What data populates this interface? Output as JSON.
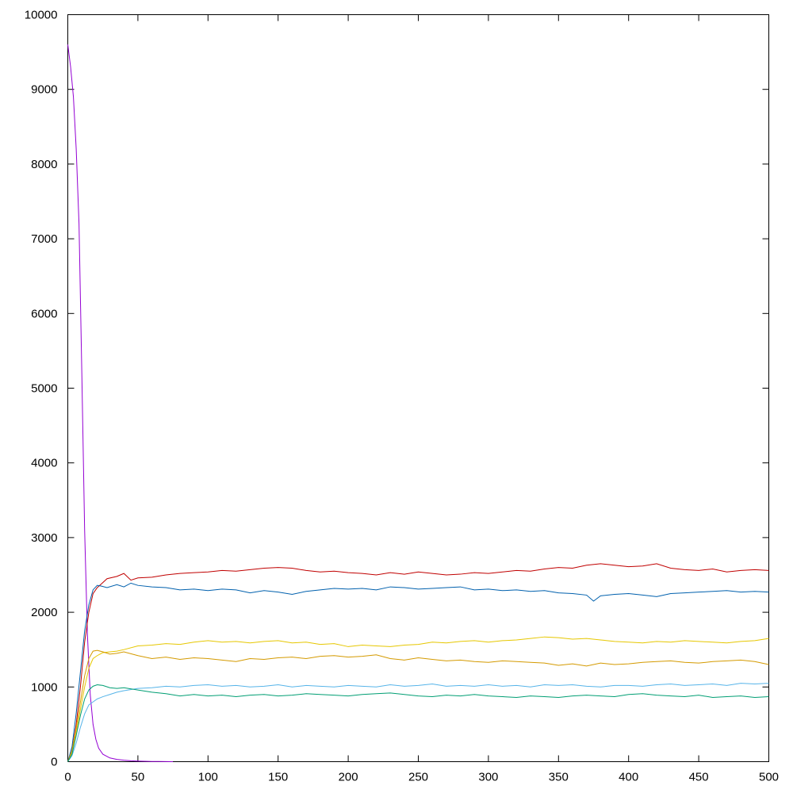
{
  "chart_data": {
    "type": "line",
    "title": "",
    "xlabel": "",
    "ylabel": "",
    "xlim": [
      0,
      500
    ],
    "ylim": [
      0,
      10000
    ],
    "grid": false,
    "x_ticks": [
      "0",
      "50",
      "100",
      "150",
      "200",
      "250",
      "300",
      "350",
      "400",
      "450",
      "500"
    ],
    "y_ticks": [
      "0",
      "1000",
      "2000",
      "3000",
      "4000",
      "5000",
      "6000",
      "7000",
      "8000",
      "9000",
      "10000"
    ],
    "series": [
      {
        "color": "#9400d3",
        "x": [
          0,
          2,
          4,
          6,
          8,
          10,
          12,
          14,
          16,
          18,
          20,
          22,
          25,
          30,
          35,
          40,
          45,
          50,
          55,
          60,
          65,
          70,
          75
        ],
        "values": [
          9600,
          9300,
          8900,
          8200,
          7200,
          5200,
          3100,
          1700,
          900,
          500,
          300,
          180,
          100,
          50,
          30,
          20,
          12,
          8,
          5,
          3,
          2,
          1,
          0
        ]
      },
      {
        "color": "#c00000",
        "x": [
          0,
          3,
          6,
          9,
          12,
          15,
          18,
          21,
          24,
          28,
          35,
          40,
          45,
          50,
          60,
          70,
          80,
          90,
          100,
          110,
          120,
          130,
          140,
          150,
          160,
          170,
          180,
          190,
          200,
          210,
          220,
          230,
          240,
          250,
          260,
          270,
          280,
          290,
          300,
          310,
          320,
          330,
          340,
          350,
          360,
          370,
          380,
          390,
          400,
          410,
          420,
          430,
          440,
          450,
          460,
          470,
          480,
          490,
          500
        ],
        "values": [
          0,
          150,
          500,
          1000,
          1600,
          2000,
          2250,
          2330,
          2380,
          2450,
          2480,
          2520,
          2430,
          2460,
          2470,
          2500,
          2520,
          2530,
          2540,
          2560,
          2550,
          2570,
          2590,
          2600,
          2590,
          2560,
          2540,
          2550,
          2530,
          2520,
          2500,
          2530,
          2510,
          2540,
          2520,
          2500,
          2510,
          2530,
          2520,
          2540,
          2560,
          2550,
          2580,
          2600,
          2590,
          2630,
          2650,
          2630,
          2610,
          2620,
          2650,
          2590,
          2570,
          2560,
          2580,
          2540,
          2560,
          2570,
          2560
        ]
      },
      {
        "color": "#0060ad",
        "x": [
          0,
          3,
          6,
          9,
          12,
          15,
          18,
          21,
          24,
          28,
          35,
          40,
          45,
          50,
          60,
          70,
          80,
          90,
          100,
          110,
          120,
          130,
          140,
          150,
          160,
          170,
          180,
          190,
          200,
          210,
          220,
          230,
          240,
          250,
          260,
          270,
          280,
          290,
          300,
          310,
          320,
          330,
          340,
          350,
          360,
          370,
          375,
          380,
          390,
          400,
          410,
          420,
          430,
          440,
          450,
          460,
          470,
          480,
          490,
          500
        ],
        "values": [
          0,
          200,
          650,
          1200,
          1750,
          2100,
          2300,
          2360,
          2350,
          2330,
          2370,
          2340,
          2390,
          2360,
          2340,
          2330,
          2300,
          2310,
          2290,
          2310,
          2300,
          2260,
          2290,
          2270,
          2240,
          2280,
          2300,
          2320,
          2310,
          2320,
          2300,
          2340,
          2330,
          2310,
          2320,
          2330,
          2340,
          2300,
          2310,
          2290,
          2300,
          2280,
          2290,
          2260,
          2250,
          2230,
          2150,
          2220,
          2240,
          2250,
          2230,
          2210,
          2250,
          2260,
          2270,
          2280,
          2290,
          2270,
          2280,
          2270
        ]
      },
      {
        "color": "#e6c700",
        "x": [
          0,
          3,
          6,
          9,
          12,
          15,
          18,
          21,
          25,
          30,
          35,
          40,
          50,
          60,
          70,
          80,
          90,
          100,
          110,
          120,
          130,
          140,
          150,
          160,
          170,
          180,
          190,
          200,
          210,
          220,
          230,
          240,
          250,
          260,
          270,
          280,
          290,
          300,
          310,
          320,
          330,
          340,
          350,
          360,
          370,
          380,
          390,
          400,
          410,
          420,
          430,
          440,
          450,
          460,
          470,
          480,
          490,
          500
        ],
        "values": [
          0,
          120,
          380,
          700,
          1000,
          1250,
          1380,
          1420,
          1460,
          1470,
          1480,
          1500,
          1550,
          1560,
          1580,
          1570,
          1600,
          1620,
          1600,
          1610,
          1590,
          1610,
          1620,
          1590,
          1600,
          1570,
          1580,
          1540,
          1560,
          1550,
          1540,
          1560,
          1570,
          1600,
          1590,
          1610,
          1620,
          1600,
          1620,
          1630,
          1650,
          1670,
          1660,
          1640,
          1650,
          1630,
          1610,
          1600,
          1590,
          1610,
          1600,
          1620,
          1610,
          1600,
          1590,
          1610,
          1620,
          1650
        ]
      },
      {
        "color": "#d49a00",
        "x": [
          0,
          3,
          6,
          9,
          12,
          15,
          18,
          21,
          25,
          30,
          35,
          40,
          50,
          60,
          70,
          80,
          90,
          100,
          110,
          120,
          130,
          140,
          150,
          160,
          170,
          180,
          190,
          200,
          210,
          220,
          230,
          240,
          250,
          260,
          270,
          280,
          290,
          300,
          310,
          320,
          330,
          340,
          350,
          360,
          370,
          380,
          390,
          400,
          410,
          420,
          430,
          440,
          450,
          460,
          470,
          480,
          490,
          500
        ],
        "values": [
          0,
          150,
          450,
          800,
          1150,
          1380,
          1480,
          1490,
          1470,
          1440,
          1450,
          1470,
          1420,
          1380,
          1400,
          1370,
          1390,
          1380,
          1360,
          1340,
          1380,
          1370,
          1390,
          1400,
          1380,
          1410,
          1420,
          1400,
          1410,
          1430,
          1380,
          1360,
          1390,
          1370,
          1350,
          1360,
          1340,
          1330,
          1350,
          1340,
          1330,
          1320,
          1290,
          1310,
          1280,
          1320,
          1300,
          1310,
          1330,
          1340,
          1350,
          1330,
          1320,
          1340,
          1350,
          1360,
          1340,
          1300
        ]
      },
      {
        "color": "#56b4e9",
        "x": [
          0,
          3,
          6,
          9,
          12,
          15,
          18,
          21,
          25,
          30,
          35,
          40,
          50,
          60,
          70,
          80,
          90,
          100,
          110,
          120,
          130,
          140,
          150,
          160,
          170,
          180,
          190,
          200,
          210,
          220,
          230,
          240,
          250,
          260,
          270,
          280,
          290,
          300,
          310,
          320,
          330,
          340,
          350,
          360,
          370,
          380,
          390,
          400,
          410,
          420,
          430,
          440,
          450,
          460,
          470,
          480,
          490,
          500
        ],
        "values": [
          0,
          80,
          250,
          460,
          640,
          760,
          800,
          840,
          870,
          900,
          930,
          950,
          980,
          990,
          1010,
          1000,
          1020,
          1030,
          1010,
          1020,
          1000,
          1010,
          1030,
          1000,
          1020,
          1010,
          1000,
          1020,
          1010,
          1000,
          1030,
          1010,
          1020,
          1040,
          1010,
          1020,
          1010,
          1030,
          1010,
          1020,
          1000,
          1030,
          1020,
          1030,
          1010,
          1000,
          1020,
          1020,
          1010,
          1030,
          1040,
          1020,
          1030,
          1040,
          1020,
          1050,
          1040,
          1050
        ]
      },
      {
        "color": "#009e73",
        "x": [
          0,
          3,
          6,
          9,
          12,
          15,
          18,
          21,
          25,
          30,
          35,
          40,
          50,
          60,
          70,
          80,
          90,
          100,
          110,
          120,
          130,
          140,
          150,
          160,
          170,
          180,
          190,
          200,
          210,
          220,
          230,
          240,
          250,
          260,
          270,
          280,
          290,
          300,
          310,
          320,
          330,
          340,
          350,
          360,
          370,
          380,
          390,
          400,
          410,
          420,
          430,
          440,
          450,
          460,
          470,
          480,
          490,
          500
        ],
        "values": [
          0,
          100,
          350,
          620,
          840,
          960,
          1010,
          1030,
          1020,
          990,
          980,
          990,
          960,
          930,
          910,
          880,
          900,
          880,
          890,
          870,
          890,
          900,
          880,
          890,
          910,
          900,
          890,
          880,
          900,
          910,
          920,
          900,
          880,
          870,
          890,
          880,
          900,
          880,
          870,
          860,
          880,
          870,
          860,
          880,
          890,
          880,
          870,
          900,
          910,
          890,
          880,
          870,
          890,
          860,
          870,
          880,
          860,
          870
        ]
      }
    ]
  }
}
